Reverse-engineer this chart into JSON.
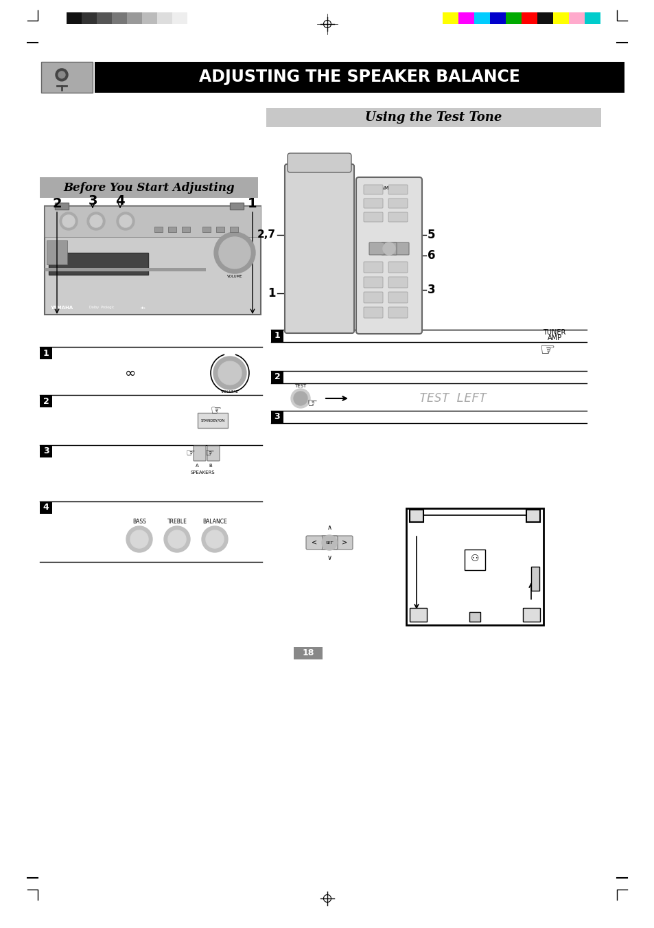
{
  "title": "ADJUSTING THE SPEAKER BALANCE",
  "subtitle": "Using the Test Tone",
  "section_before": "Before You Start Adjusting",
  "bg_color": "#ffffff",
  "title_bg": "#000000",
  "title_fg": "#ffffff",
  "subtitle_bg": "#c8c8c8",
  "subtitle_fg": "#000000",
  "section_bg": "#aaaaaa",
  "section_fg": "#000000",
  "color_bars_left": [
    "#111111",
    "#333333",
    "#555555",
    "#777777",
    "#999999",
    "#bbbbbb",
    "#dddddd",
    "#eeeeee"
  ],
  "color_bars_right": [
    "#ffff00",
    "#ff00ff",
    "#00ccff",
    "#0000cc",
    "#00aa00",
    "#ff0000",
    "#111111",
    "#ffff00",
    "#ffaacc",
    "#00cccc"
  ],
  "page_number": "18",
  "step_labels_left": [
    "1",
    "2",
    "3",
    "4"
  ],
  "step_labels_right": [
    "1",
    "2",
    "3"
  ]
}
